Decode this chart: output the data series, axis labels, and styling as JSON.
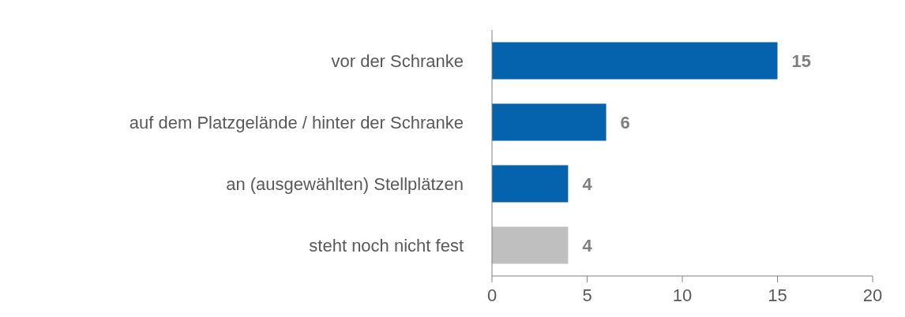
{
  "chart_data": {
    "type": "bar",
    "orientation": "horizontal",
    "categories": [
      "vor der Schranke",
      "auf dem Platzgelände / hinter der Schranke",
      "an (ausgewählten) Stellplätzen",
      "steht noch nicht fest"
    ],
    "values": [
      15,
      6,
      4,
      4
    ],
    "colors": [
      "#0563ad",
      "#0563ad",
      "#0563ad",
      "#bfbfbf"
    ],
    "xlim": [
      0,
      20
    ],
    "xticks": [
      0,
      5,
      10,
      15,
      20
    ],
    "grid": false,
    "data_labels": true
  }
}
